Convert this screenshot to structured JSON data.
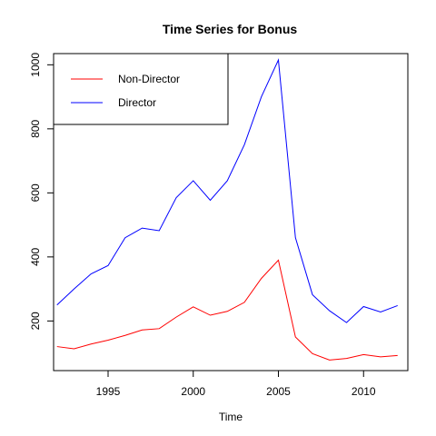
{
  "chart_data": {
    "type": "line",
    "title": "Time Series for Bonus",
    "xlabel": "Time",
    "ylabel": "",
    "xlim": [
      1991.8,
      2012.6
    ],
    "ylim": [
      45,
      1035
    ],
    "x_ticks": [
      1995,
      2000,
      2005,
      2010
    ],
    "y_ticks": [
      200,
      400,
      600,
      800,
      1000
    ],
    "grid": false,
    "legend_position": "top-left",
    "x": [
      1992,
      1993,
      1994,
      1995,
      1996,
      1997,
      1998,
      1999,
      2000,
      2001,
      2002,
      2003,
      2004,
      2005,
      2006,
      2007,
      2008,
      2009,
      2010,
      2011,
      2012
    ],
    "series": [
      {
        "name": "Non-Director",
        "color": "#ff0000",
        "values": [
          120,
          113,
          128,
          140,
          155,
          172,
          176,
          212,
          244,
          218,
          230,
          258,
          333,
          390,
          150,
          98,
          78,
          83,
          95,
          88,
          92
        ]
      },
      {
        "name": "Director",
        "color": "#0000ff",
        "values": [
          250,
          300,
          347,
          373,
          460,
          490,
          482,
          585,
          638,
          577,
          638,
          750,
          900,
          1015,
          460,
          282,
          232,
          195,
          245,
          228,
          248
        ]
      }
    ]
  }
}
